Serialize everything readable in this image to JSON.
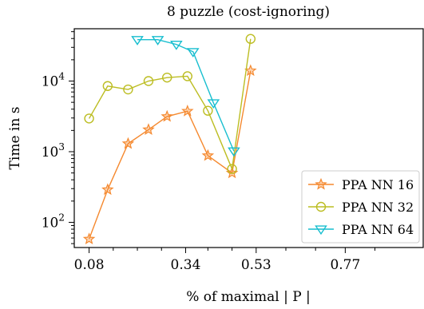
{
  "chart_data": {
    "type": "line",
    "title": "8 puzzle (cost-ignoring)",
    "xlabel": "% of maximal | P |",
    "ylabel": "Time in s",
    "y_scale": "log",
    "xlim": [
      0.04,
      0.98
    ],
    "ylim": [
      44,
      55000
    ],
    "x_ticks": [
      {
        "value": 0.08,
        "label": "0.08"
      },
      {
        "value": 0.34,
        "label": "0.34"
      },
      {
        "value": 0.53,
        "label": "0.53"
      },
      {
        "value": 0.77,
        "label": "0.77"
      }
    ],
    "x_minor_ticks": [
      0.145,
      0.21,
      0.275,
      0.4,
      0.465,
      0.61,
      0.69,
      0.85
    ],
    "y_ticks": [
      {
        "value": 100,
        "label": "10",
        "exp": "2"
      },
      {
        "value": 1000,
        "label": "10",
        "exp": "3"
      },
      {
        "value": 10000,
        "label": "10",
        "exp": "4"
      }
    ],
    "grid": false,
    "legend_position": "bottom-right",
    "series": [
      {
        "name": "PPA NN 16",
        "color": "#f5892f",
        "marker": "star",
        "points": [
          [
            0.08,
            58
          ],
          [
            0.13,
            290
          ],
          [
            0.185,
            1300
          ],
          [
            0.24,
            2050
          ],
          [
            0.29,
            3150
          ],
          [
            0.345,
            3750
          ],
          [
            0.4,
            880
          ],
          [
            0.465,
            500
          ],
          [
            0.515,
            14000
          ]
        ]
      },
      {
        "name": "PPA NN 32",
        "color": "#bcbd22",
        "marker": "circle",
        "points": [
          [
            0.08,
            2950
          ],
          [
            0.13,
            8500
          ],
          [
            0.185,
            7600
          ],
          [
            0.24,
            10000
          ],
          [
            0.29,
            11200
          ],
          [
            0.345,
            11700
          ],
          [
            0.4,
            3800
          ],
          [
            0.465,
            570
          ],
          [
            0.515,
            39500
          ]
        ]
      },
      {
        "name": "PPA NN 64",
        "color": "#17becf",
        "marker": "triangle-down",
        "points": [
          [
            0.21,
            38500
          ],
          [
            0.265,
            38500
          ],
          [
            0.315,
            33000
          ],
          [
            0.36,
            26000
          ],
          [
            0.415,
            4900
          ],
          [
            0.47,
            1020
          ]
        ]
      }
    ]
  }
}
